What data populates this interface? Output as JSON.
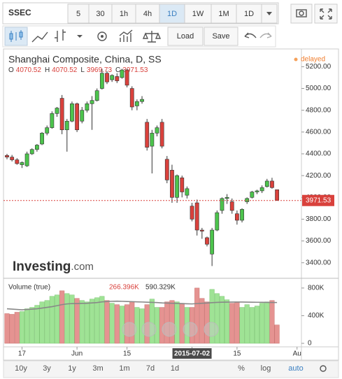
{
  "toolbar": {
    "symbol": "SSEC",
    "intervals": [
      "5",
      "30",
      "1h",
      "4h",
      "1D",
      "1W",
      "1M"
    ],
    "active": "1D",
    "chart_type": "1D",
    "load": "Load",
    "save": "Save"
  },
  "chart_data": {
    "type": "candlestick",
    "title": "Shanghai Composite, China, D, SS",
    "status": "delayed",
    "ohlc_keys": [
      "O",
      "H",
      "L",
      "C"
    ],
    "up_color": "#4cc34c",
    "down_color": "#d9413c",
    "candles": [
      [
        4385,
        4400,
        4350,
        4370
      ],
      [
        4370,
        4390,
        4330,
        4345
      ],
      [
        4345,
        4360,
        4300,
        4310
      ],
      [
        4300,
        4330,
        4270,
        4320
      ],
      [
        4290,
        4420,
        4280,
        4400
      ],
      [
        4400,
        4450,
        4390,
        4440
      ],
      [
        4440,
        4490,
        4420,
        4480
      ],
      [
        4490,
        4600,
        4480,
        4590
      ],
      [
        4590,
        4660,
        4570,
        4640
      ],
      [
        4640,
        4790,
        4630,
        4770
      ],
      [
        4770,
        4830,
        4740,
        4820
      ],
      [
        4910,
        4940,
        4580,
        4620
      ],
      [
        4620,
        4720,
        4420,
        4700
      ],
      [
        4700,
        4880,
        4690,
        4860
      ],
      [
        4860,
        4870,
        4600,
        4620
      ],
      [
        4700,
        4830,
        4680,
        4800
      ],
      [
        4800,
        4880,
        4780,
        4860
      ],
      [
        4860,
        4930,
        4620,
        4890
      ],
      [
        4890,
        5000,
        4880,
        4980
      ],
      [
        5000,
        5180,
        4990,
        5140
      ],
      [
        5140,
        5160,
        5040,
        5060
      ],
      [
        5080,
        5130,
        5060,
        5120
      ],
      [
        5110,
        5140,
        5050,
        5070
      ],
      [
        5100,
        5180,
        5090,
        5170
      ],
      [
        5170,
        5178,
        5010,
        5030
      ],
      [
        5000,
        5020,
        4800,
        4830
      ],
      [
        4840,
        4900,
        4800,
        4880
      ],
      [
        4880,
        4930,
        4860,
        4900
      ],
      [
        4690,
        4720,
        4430,
        4460
      ],
      [
        4470,
        4620,
        4220,
        4590
      ],
      [
        4590,
        4660,
        4560,
        4640
      ],
      [
        4690,
        4720,
        4450,
        4470
      ],
      [
        4350,
        4380,
        4130,
        4160
      ],
      [
        4250,
        4300,
        3950,
        4000
      ],
      [
        4000,
        4210,
        3950,
        4200
      ],
      [
        4180,
        4200,
        4000,
        4050
      ],
      [
        4020,
        4100,
        3990,
        4080
      ],
      [
        3920,
        3950,
        3780,
        3800
      ],
      [
        3950,
        3980,
        3650,
        3700
      ],
      [
        3700,
        3720,
        3620,
        3690
      ],
      [
        3630,
        3640,
        3550,
        3570
      ],
      [
        3480,
        3720,
        3370,
        3700
      ],
      [
        3700,
        3880,
        3690,
        3860
      ],
      [
        3880,
        4000,
        3850,
        3990
      ],
      [
        3990,
        4030,
        3940,
        4000
      ],
      [
        3960,
        3990,
        3850,
        3880
      ],
      [
        3850,
        3880,
        3750,
        3790
      ],
      [
        3790,
        3900,
        3770,
        3890
      ],
      [
        3960,
        4000,
        3940,
        3990
      ],
      [
        4000,
        4060,
        3990,
        4050
      ],
      [
        4050,
        4070,
        4030,
        4060
      ],
      [
        4060,
        4110,
        4040,
        4090
      ],
      [
        4100,
        4170,
        4090,
        4150
      ],
      [
        4150,
        4180,
        4080,
        4090
      ],
      [
        4070.52,
        4070.52,
        3969.73,
        3971.53
      ]
    ],
    "ylim": [
      3270,
      5350
    ],
    "yticks": [
      {
        "value": 5200,
        "label": "5200.00"
      },
      {
        "value": 5000,
        "label": "5000.00"
      },
      {
        "value": 4800,
        "label": "4800.00"
      },
      {
        "value": 4600,
        "label": "4600.00"
      },
      {
        "value": 4400,
        "label": "4400.00"
      },
      {
        "value": 4200,
        "label": "4200.00"
      },
      {
        "value": 4000,
        "label": "4000.00"
      },
      {
        "value": 3800,
        "label": "3800.00"
      },
      {
        "value": 3600,
        "label": "3600.00"
      },
      {
        "value": 3400,
        "label": "3400.00"
      }
    ],
    "xticks": [
      {
        "value": 3,
        "label": "17"
      },
      {
        "value": 14,
        "label": "Jun"
      },
      {
        "value": 24,
        "label": "15"
      },
      {
        "value": 37,
        "label": "2015-07-02"
      },
      {
        "value": 46,
        "label": "15"
      },
      {
        "value": 58,
        "label": "Au"
      }
    ],
    "highlight_xtick": "2015-07-02",
    "watermark": "Investing",
    "watermark_suffix": ".com",
    "volume": {
      "title": "Volume (true)",
      "value_label": "266.396K",
      "ma_label": "590.329K",
      "up_color": "#9fe395",
      "down_color": "#e59391",
      "ma_color": "#888888",
      "values": [
        430000,
        420000,
        450000,
        460000,
        500000,
        520000,
        550000,
        600000,
        620000,
        680000,
        700000,
        760000,
        720000,
        700000,
        650000,
        620000,
        600000,
        640000,
        660000,
        680000,
        620000,
        580000,
        560000,
        540000,
        560000,
        600000,
        520000,
        500000,
        560000,
        640000,
        520000,
        520000,
        600000,
        620000,
        600000,
        580000,
        520000,
        520000,
        800000,
        650000,
        600000,
        780000,
        720000,
        680000,
        630000,
        580000,
        600000,
        520000,
        560000,
        520000,
        540000,
        580000,
        600000,
        620000,
        266396
      ],
      "ma": [
        500000,
        495000,
        490000,
        485000,
        490000,
        495000,
        500000,
        510000,
        520000,
        530000,
        545000,
        560000,
        570000,
        575000,
        575000,
        578000,
        580000,
        585000,
        590000,
        600000,
        605000,
        608000,
        610000,
        608000,
        605000,
        603000,
        600000,
        598000,
        595000,
        592000,
        590000,
        585000,
        582000,
        580000,
        578000,
        575000,
        572000,
        570000,
        575000,
        580000,
        583000,
        588000,
        592000,
        595000,
        596000,
        597000,
        598000,
        597000,
        596000,
        595000,
        594000,
        593000,
        592000,
        591000,
        590329
      ],
      "ylim": [
        0,
        900000
      ],
      "yticks": [
        {
          "value": 800000,
          "label": "800K"
        },
        {
          "value": 400000,
          "label": "400K"
        },
        0
      ]
    }
  },
  "ranges": [
    "10y",
    "3y",
    "1y",
    "3m",
    "1m",
    "7d",
    "1d"
  ],
  "scale_options": [
    "%",
    "log",
    "auto"
  ]
}
